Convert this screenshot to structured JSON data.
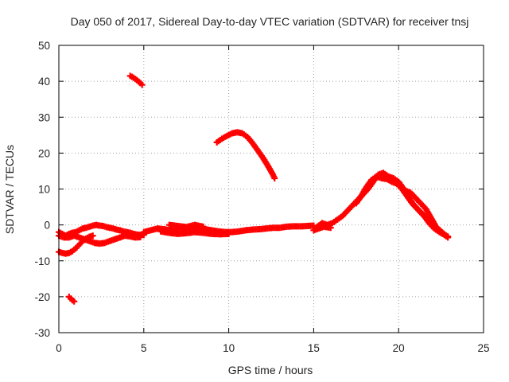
{
  "chart_data": {
    "type": "scatter",
    "title": "Day 050 of 2017, Sidereal Day-to-day VTEC variation (SDTVAR) for receiver tnsj",
    "xlabel": "GPS time / hours",
    "ylabel": "SDTVAR / TECUs",
    "xlim": [
      0,
      25
    ],
    "ylim": [
      -30,
      50
    ],
    "xticks": [
      0,
      5,
      10,
      15,
      20,
      25
    ],
    "yticks": [
      -30,
      -20,
      -10,
      0,
      10,
      20,
      30,
      40,
      50
    ],
    "grid": true,
    "legend": "none",
    "series": [
      {
        "name": "tnsj",
        "color": "#ff0000",
        "marker": "plus",
        "points": [
          [
            0.0,
            -2.0
          ],
          [
            0.2,
            -2.5
          ],
          [
            0.4,
            -3.0
          ],
          [
            0.6,
            -2.5
          ],
          [
            0.8,
            -2.2
          ],
          [
            1.0,
            -2.0
          ],
          [
            1.2,
            -1.5
          ],
          [
            1.4,
            -1.0
          ],
          [
            1.6,
            -0.8
          ],
          [
            1.8,
            -0.5
          ],
          [
            2.0,
            -0.2
          ],
          [
            2.2,
            0.0
          ],
          [
            2.4,
            -0.2
          ],
          [
            2.6,
            -0.3
          ],
          [
            2.8,
            -0.6
          ],
          [
            3.0,
            -0.8
          ],
          [
            3.2,
            -1.0
          ],
          [
            3.4,
            -1.3
          ],
          [
            3.6,
            -1.5
          ],
          [
            3.8,
            -1.8
          ],
          [
            4.0,
            -2.0
          ],
          [
            4.2,
            -2.2
          ],
          [
            4.4,
            -2.5
          ],
          [
            4.6,
            -2.7
          ],
          [
            4.8,
            -2.8
          ],
          [
            5.0,
            -2.8
          ],
          [
            0.0,
            -3.0
          ],
          [
            0.3,
            -3.5
          ],
          [
            0.6,
            -3.5
          ],
          [
            0.9,
            -3.0
          ],
          [
            1.2,
            -3.5
          ],
          [
            1.5,
            -4.0
          ],
          [
            1.8,
            -4.5
          ],
          [
            2.1,
            -5.0
          ],
          [
            2.4,
            -5.2
          ],
          [
            2.7,
            -5.0
          ],
          [
            3.0,
            -4.5
          ],
          [
            3.3,
            -4.0
          ],
          [
            3.6,
            -3.5
          ],
          [
            3.9,
            -3.0
          ],
          [
            4.2,
            -3.2
          ],
          [
            4.5,
            -3.5
          ],
          [
            4.8,
            -3.4
          ],
          [
            0.0,
            -7.5
          ],
          [
            0.2,
            -7.8
          ],
          [
            0.4,
            -8.0
          ],
          [
            0.6,
            -7.8
          ],
          [
            0.8,
            -7.3
          ],
          [
            1.0,
            -6.5
          ],
          [
            1.2,
            -5.5
          ],
          [
            1.4,
            -4.5
          ],
          [
            1.6,
            -3.8
          ],
          [
            1.8,
            -3.3
          ],
          [
            2.0,
            -3.0
          ],
          [
            0.6,
            -20.0
          ],
          [
            0.7,
            -20.5
          ],
          [
            0.8,
            -21.0
          ],
          [
            0.9,
            -21.3
          ],
          [
            4.2,
            41.5
          ],
          [
            4.4,
            41.0
          ],
          [
            4.6,
            40.3
          ],
          [
            4.8,
            39.5
          ],
          [
            4.9,
            39.0
          ],
          [
            5.0,
            -2.0
          ],
          [
            5.4,
            -1.5
          ],
          [
            5.8,
            -1.0
          ],
          [
            6.2,
            -1.2
          ],
          [
            6.6,
            -1.5
          ],
          [
            7.0,
            -1.2
          ],
          [
            7.4,
            -1.0
          ],
          [
            7.8,
            -0.8
          ],
          [
            8.2,
            -1.0
          ],
          [
            8.6,
            -1.2
          ],
          [
            9.0,
            -1.5
          ],
          [
            9.4,
            -1.8
          ],
          [
            9.8,
            -2.0
          ],
          [
            10.2,
            -2.0
          ],
          [
            10.6,
            -1.8
          ],
          [
            11.0,
            -1.5
          ],
          [
            11.4,
            -1.3
          ],
          [
            11.8,
            -1.2
          ],
          [
            12.2,
            -1.0
          ],
          [
            12.6,
            -0.8
          ],
          [
            13.0,
            -0.8
          ],
          [
            13.4,
            -0.5
          ],
          [
            13.8,
            -0.4
          ],
          [
            14.2,
            -0.4
          ],
          [
            14.6,
            -0.3
          ],
          [
            15.0,
            -0.2
          ],
          [
            6.0,
            -1.8
          ],
          [
            6.5,
            -2.2
          ],
          [
            7.0,
            -2.5
          ],
          [
            7.5,
            -2.3
          ],
          [
            8.0,
            -2.0
          ],
          [
            8.5,
            -2.2
          ],
          [
            9.0,
            -2.5
          ],
          [
            9.5,
            -2.6
          ],
          [
            10.0,
            -2.5
          ],
          [
            6.5,
            0.0
          ],
          [
            7.0,
            -0.3
          ],
          [
            7.5,
            -0.6
          ],
          [
            8.0,
            0.0
          ],
          [
            8.5,
            -0.5
          ],
          [
            9.3,
            23.0
          ],
          [
            9.6,
            24.0
          ],
          [
            9.9,
            24.8
          ],
          [
            10.2,
            25.5
          ],
          [
            10.5,
            25.8
          ],
          [
            10.8,
            25.5
          ],
          [
            11.1,
            24.5
          ],
          [
            11.4,
            22.8
          ],
          [
            11.7,
            20.8
          ],
          [
            12.0,
            18.8
          ],
          [
            12.3,
            16.5
          ],
          [
            12.6,
            14.0
          ],
          [
            12.7,
            13.0
          ],
          [
            15.2,
            -0.5
          ],
          [
            15.5,
            0.5
          ],
          [
            15.8,
            0.0
          ],
          [
            16.1,
            0.5
          ],
          [
            16.4,
            1.5
          ],
          [
            16.7,
            2.5
          ],
          [
            17.0,
            4.0
          ],
          [
            17.3,
            5.5
          ],
          [
            17.6,
            7.0
          ],
          [
            17.9,
            8.5
          ],
          [
            18.2,
            10.0
          ],
          [
            18.5,
            12.0
          ],
          [
            18.8,
            14.0
          ],
          [
            19.1,
            14.5
          ],
          [
            19.4,
            13.5
          ],
          [
            19.7,
            13.0
          ],
          [
            20.0,
            12.0
          ],
          [
            20.3,
            10.0
          ],
          [
            20.6,
            7.5
          ],
          [
            20.9,
            5.5
          ],
          [
            21.2,
            4.0
          ],
          [
            21.5,
            2.5
          ],
          [
            21.8,
            0.5
          ],
          [
            22.1,
            -1.0
          ],
          [
            22.4,
            -2.0
          ],
          [
            22.7,
            -2.8
          ],
          [
            22.9,
            -3.2
          ],
          [
            15.0,
            -1.5
          ],
          [
            15.3,
            -1.0
          ],
          [
            15.6,
            -0.5
          ],
          [
            16.0,
            -0.8
          ],
          [
            17.5,
            6.0
          ],
          [
            17.8,
            8.0
          ],
          [
            18.1,
            10.5
          ],
          [
            18.4,
            12.5
          ],
          [
            18.7,
            13.5
          ],
          [
            19.0,
            13.0
          ],
          [
            19.3,
            12.8
          ],
          [
            19.6,
            12.0
          ],
          [
            19.9,
            11.5
          ],
          [
            20.2,
            10.0
          ],
          [
            20.5,
            8.0
          ],
          [
            20.8,
            6.0
          ],
          [
            21.1,
            4.5
          ],
          [
            21.4,
            3.0
          ],
          [
            21.7,
            1.5
          ],
          [
            22.0,
            0.0
          ],
          [
            22.3,
            -1.5
          ],
          [
            22.6,
            -2.5
          ],
          [
            22.9,
            -3.5
          ],
          [
            20.1,
            11.0
          ],
          [
            20.4,
            9.5
          ],
          [
            20.7,
            9.0
          ],
          [
            21.0,
            7.5
          ],
          [
            21.3,
            6.0
          ],
          [
            21.6,
            4.5
          ],
          [
            21.9,
            2.0
          ],
          [
            22.2,
            -0.5
          ],
          [
            22.5,
            -1.8
          ],
          [
            22.8,
            -3.0
          ]
        ]
      }
    ]
  }
}
